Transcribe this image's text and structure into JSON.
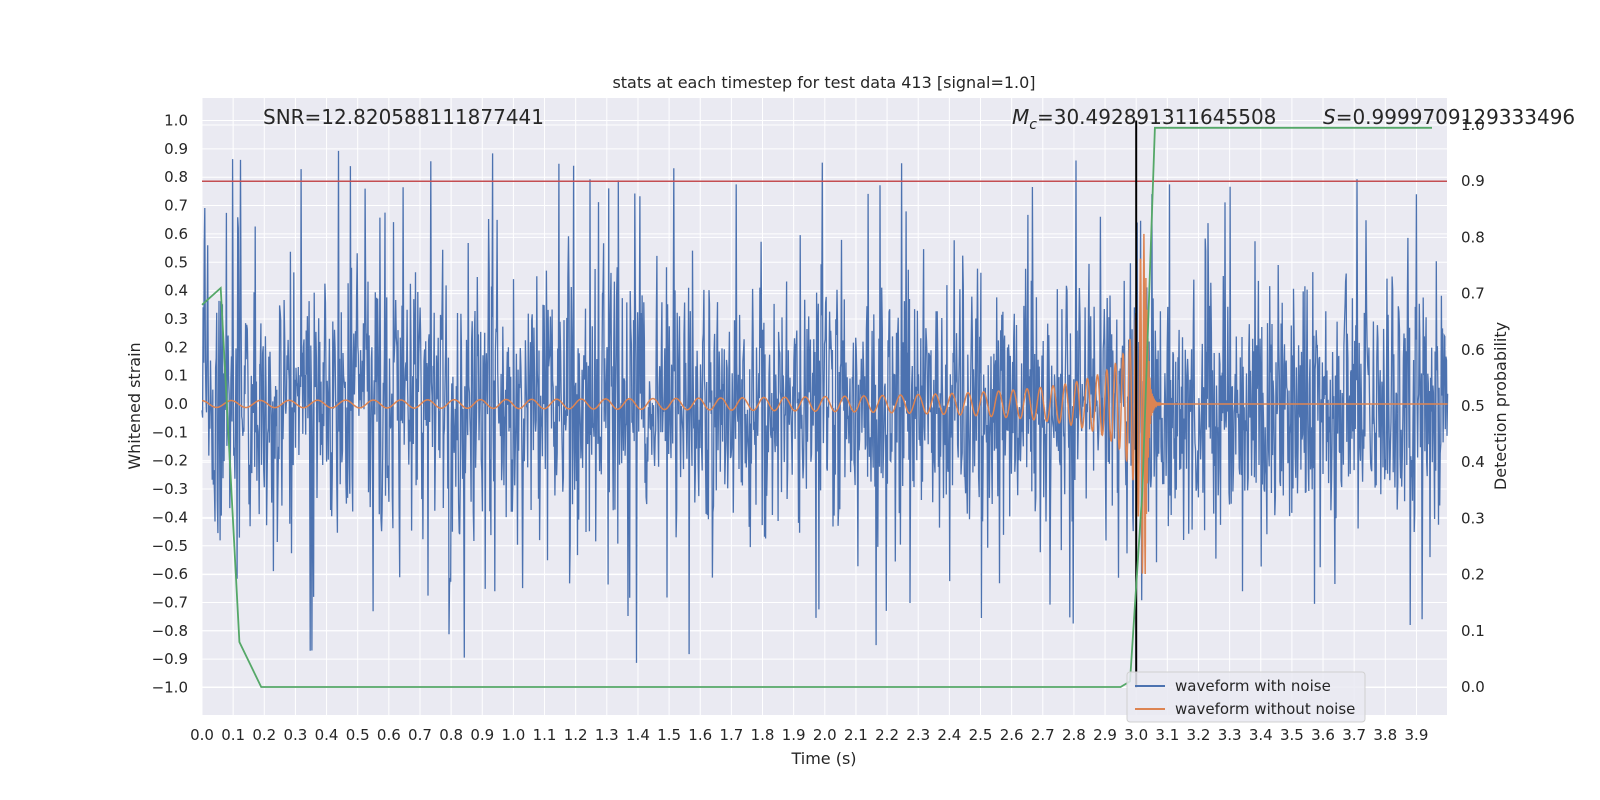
{
  "chart_data": {
    "type": "line",
    "title": "stats at each timestep for test data 413 [signal=1.0]",
    "xlabel": "Time (s)",
    "ylabel": "Whitened strain",
    "y2label": "Detection probability",
    "xlim": [
      0.0,
      4.0
    ],
    "ylim": [
      -1.1,
      1.1
    ],
    "y2lim": [
      -0.05,
      1.0
    ],
    "x_ticks": [
      "0.0",
      "0.1",
      "0.2",
      "0.3",
      "0.4",
      "0.5",
      "0.6",
      "0.7",
      "0.8",
      "0.9",
      "1.0",
      "1.1",
      "1.2",
      "1.3",
      "1.4",
      "1.5",
      "1.6",
      "1.7",
      "1.8",
      "1.9",
      "2.0",
      "2.1",
      "2.2",
      "2.3",
      "2.4",
      "2.5",
      "2.6",
      "2.7",
      "2.8",
      "2.9",
      "3.0",
      "3.1",
      "3.2",
      "3.3",
      "3.4",
      "3.5",
      "3.6",
      "3.7",
      "3.8",
      "3.9"
    ],
    "y_ticks": [
      "1.0",
      "0.9",
      "0.8",
      "0.7",
      "0.6",
      "0.5",
      "0.4",
      "0.3",
      "0.2",
      "0.1",
      "0.0",
      "−0.1",
      "−0.2",
      "−0.3",
      "−0.4",
      "−0.5",
      "−0.6",
      "−0.7",
      "−0.8",
      "−0.9",
      "−1.0"
    ],
    "y2_ticks": [
      "1.0",
      "0.9",
      "0.8",
      "0.7",
      "0.6",
      "0.5",
      "0.4",
      "0.3",
      "0.2",
      "0.1",
      "0.0"
    ],
    "annotations": {
      "snr": "SNR=12.820588111877441",
      "mc_symbol": "M",
      "mc_subscript": "c",
      "mc_value": "=30.492891311645508",
      "s_symbol": "S",
      "s_value": "=0.9999709129333496"
    },
    "merger_time": 3.0,
    "threshold_probability": 0.9,
    "detection_probability": {
      "x": [
        0.0,
        0.06,
        0.12,
        0.19,
        2.95,
        2.98,
        3.02,
        3.06,
        3.95
      ],
      "y": [
        0.68,
        0.71,
        0.08,
        0.0,
        0.0,
        0.01,
        0.35,
        0.995,
        0.995
      ]
    },
    "chirp": {
      "merger": 3.03,
      "amplitude_start": 0.012,
      "peak_amplitude": 0.6,
      "frequency_start": 10.5
    },
    "noise": {
      "typical_range": [
        -0.55,
        0.65
      ],
      "extreme_range": [
        -1.0,
        0.97
      ]
    },
    "series": [
      {
        "name": "waveform with noise",
        "color": "#4c72b0"
      },
      {
        "name": "waveform without noise",
        "color": "#dd8452"
      }
    ],
    "colors": {
      "background": "#eaeaf2",
      "grid": "#ffffff",
      "probability": "#55a868",
      "threshold": "#c44e52",
      "merger_line": "#000000"
    },
    "legend_position": "lower-right"
  }
}
